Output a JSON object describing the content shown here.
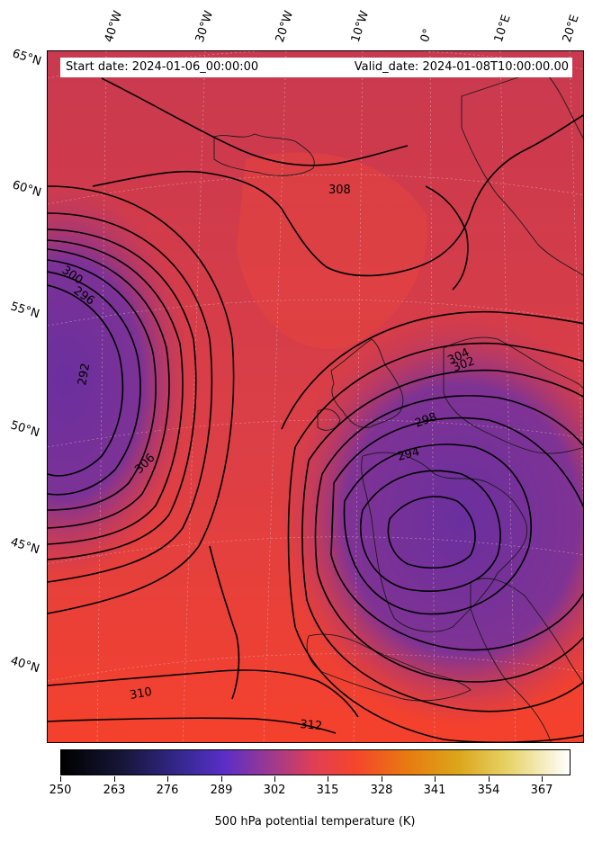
{
  "map": {
    "start_label": "Start date: 2024-01-06_00:00:00",
    "valid_label": "Valid_date: 2024-01-08T10:00:00.00",
    "latitude_labels": [
      "65°N",
      "60°N",
      "55°N",
      "50°N",
      "45°N",
      "40°N"
    ],
    "longitude_labels": [
      "40°W",
      "30°W",
      "20°W",
      "10°W",
      "0°",
      "10°E",
      "20°E"
    ],
    "contour_labels": [
      "292",
      "294",
      "296",
      "298",
      "300",
      "302",
      "304",
      "306",
      "308",
      "310",
      "312"
    ],
    "contour_interval_K": 2,
    "colors": {
      "cold": "#6b2fa0",
      "mid": "#d23f4f",
      "warm": "#f5402a",
      "contour": "#000000"
    }
  },
  "colorbar": {
    "title": "500 hPa potential temperature (K)",
    "ticks": [
      "250",
      "263",
      "276",
      "289",
      "302",
      "315",
      "328",
      "341",
      "354",
      "367"
    ],
    "range": [
      250,
      372
    ],
    "colormap": "CMRmap-like: black → indigo → red → orange → yellow → white"
  }
}
